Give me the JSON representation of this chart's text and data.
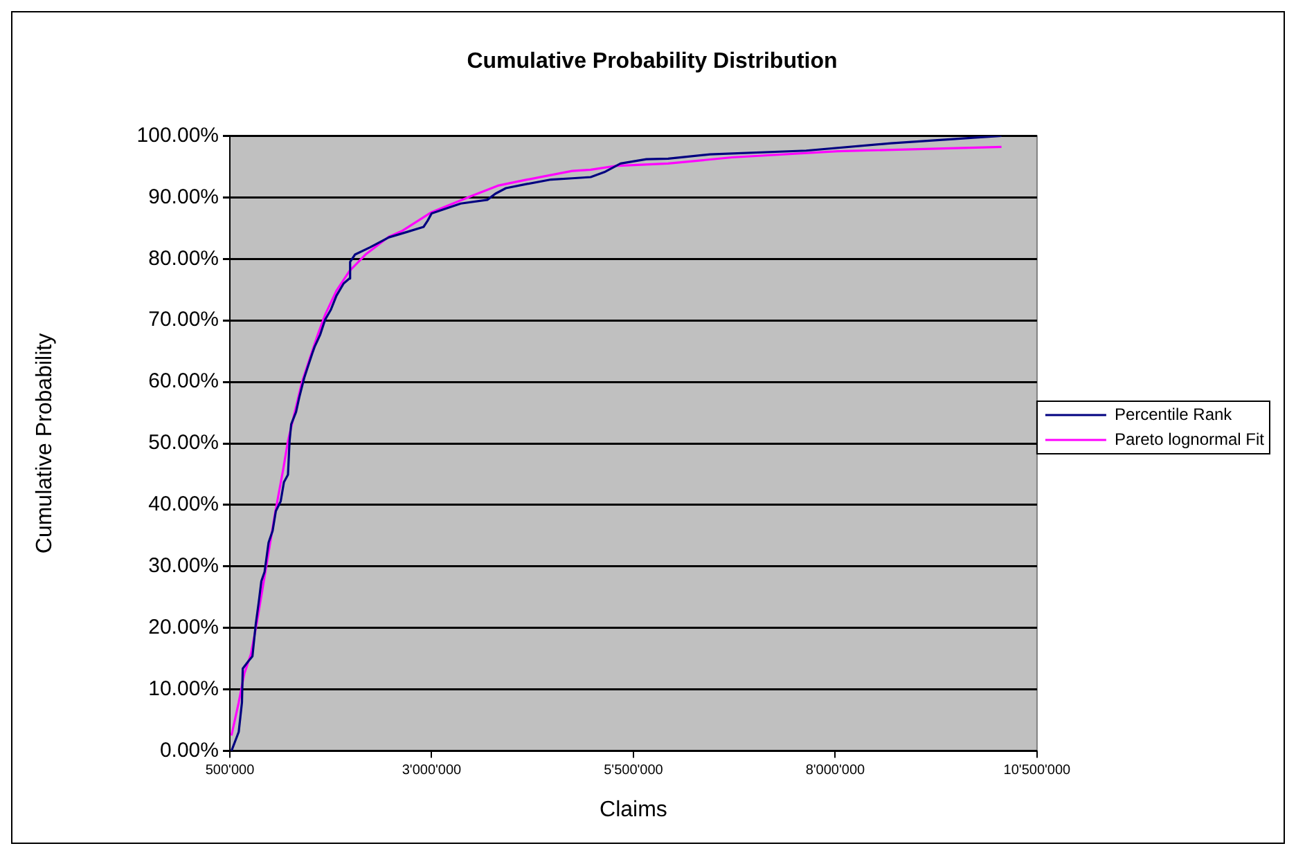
{
  "chart_data": {
    "type": "line",
    "title": "Cumulative Probability Distribution",
    "xlabel": "Claims",
    "ylabel": "Cumulative Probability",
    "xlim": [
      500000,
      10500000
    ],
    "xticks": [
      {
        "value": 500000,
        "label": "500'000"
      },
      {
        "value": 3000000,
        "label": "3'000'000"
      },
      {
        "value": 5500000,
        "label": "5'500'000"
      },
      {
        "value": 8000000,
        "label": "8'000'000"
      },
      {
        "value": 10500000,
        "label": "10'500'000"
      }
    ],
    "ylim": [
      0,
      100
    ],
    "yticks": [
      {
        "value": 0,
        "label": "0.00%"
      },
      {
        "value": 10,
        "label": "10.00%"
      },
      {
        "value": 20,
        "label": "20.00%"
      },
      {
        "value": 30,
        "label": "30.00%"
      },
      {
        "value": 40,
        "label": "40.00%"
      },
      {
        "value": 50,
        "label": "50.00%"
      },
      {
        "value": 60,
        "label": "60.00%"
      },
      {
        "value": 70,
        "label": "70.00%"
      },
      {
        "value": 80,
        "label": "80.00%"
      },
      {
        "value": 90,
        "label": "90.00%"
      },
      {
        "value": 100,
        "label": "100.00%"
      }
    ],
    "grid": "y",
    "legend": "right",
    "marker": "none",
    "line_style": "solid",
    "series": [
      {
        "name": "Percentile Rank",
        "color": "#000080",
        "x": [
          520000,
          610000,
          650000,
          660000,
          730000,
          780000,
          820000,
          860000,
          890000,
          930000,
          980000,
          1030000,
          1070000,
          1130000,
          1170000,
          1220000,
          1240000,
          1260000,
          1320000,
          1360000,
          1420000,
          1450000,
          1520000,
          1550000,
          1620000,
          1680000,
          1750000,
          1820000,
          1910000,
          1980000,
          1990000,
          2050000,
          2240000,
          2470000,
          2700000,
          2900000,
          2950000,
          3000000,
          3360000,
          3690000,
          3790000,
          3920000,
          4150000,
          4480000,
          4740000,
          4970000,
          5140000,
          5340000,
          5660000,
          5930000,
          6450000,
          7640000,
          8690000,
          10060000
        ],
        "values": [
          0,
          3.1,
          7.9,
          13.4,
          14.6,
          15.4,
          20.5,
          24.4,
          27.6,
          29.1,
          33.9,
          35.8,
          39,
          40.6,
          43.7,
          44.9,
          50.4,
          53.1,
          55.1,
          57.5,
          60.6,
          61.8,
          64.6,
          65.7,
          67.7,
          70.1,
          71.7,
          74,
          76,
          76.8,
          79.5,
          80.7,
          81.9,
          83.5,
          84.4,
          85.2,
          86.2,
          87.4,
          89,
          89.6,
          90.6,
          91.5,
          92.1,
          92.9,
          93.1,
          93.3,
          94.1,
          95.5,
          96.2,
          96.3,
          97,
          97.6,
          98.8,
          100
        ]
      },
      {
        "name": "Pareto lognormal Fit",
        "color": "#ff00ff",
        "x": [
          520000,
          610000,
          680000,
          760000,
          830000,
          890000,
          980000,
          1060000,
          1160000,
          1220000,
          1290000,
          1390000,
          1490000,
          1590000,
          1680000,
          1820000,
          1980000,
          2180000,
          2470000,
          2640000,
          3000000,
          3490000,
          3820000,
          4150000,
          4740000,
          4970000,
          5270000,
          5930000,
          6720000,
          8030000,
          10060000
        ],
        "values": [
          2.5,
          7.9,
          12.6,
          15.7,
          20.5,
          25.2,
          32.3,
          38.6,
          45.7,
          50.4,
          54.3,
          59.8,
          63.8,
          67.7,
          70.9,
          74.8,
          78,
          80.7,
          83.6,
          84.6,
          87.6,
          90.2,
          91.9,
          92.8,
          94.3,
          94.5,
          95.1,
          95.5,
          96.5,
          97.5,
          98.2
        ]
      }
    ]
  }
}
